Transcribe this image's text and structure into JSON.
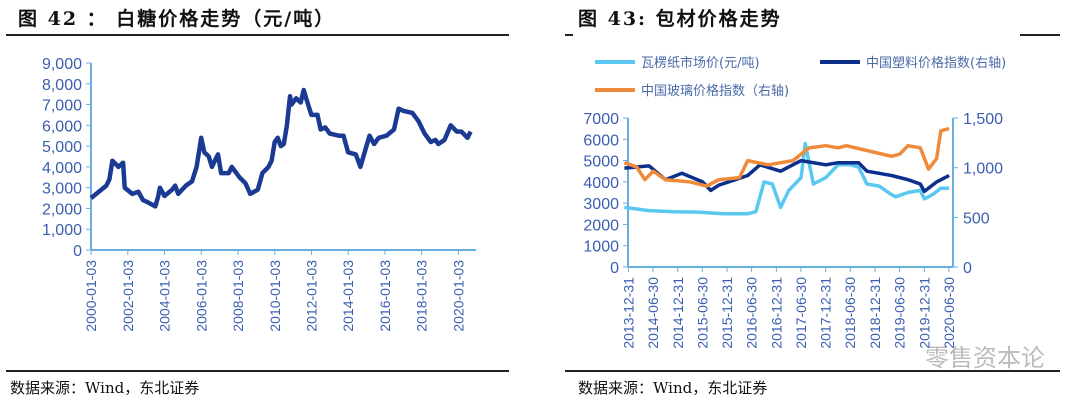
{
  "chart_data": [
    {
      "type": "line",
      "title": "图 42 ： 白糖价格走势（元/吨）",
      "source": "数据来源：Wind，东北证券",
      "ylim": [
        0,
        9000
      ],
      "yticks": [
        "0",
        "1,000",
        "2,000",
        "3,000",
        "4,000",
        "5,000",
        "6,000",
        "7,000",
        "8,000",
        "9,000"
      ],
      "xticks": [
        "2000-01-03",
        "2002-01-03",
        "2004-01-03",
        "2006-01-03",
        "2008-01-03",
        "2010-01-03",
        "2012-01-03",
        "2014-01-03",
        "2016-01-03",
        "2018-01-03",
        "2020-01-03"
      ],
      "grid": false,
      "color": "#1a3a93",
      "series": [
        {
          "x": [
            "2000-01",
            "2000-11",
            "2001-01",
            "2001-03",
            "2001-07",
            "2001-10",
            "2001-11",
            "2002-04",
            "2002-08",
            "2002-11",
            "2003-02",
            "2003-07",
            "2003-09",
            "2003-10",
            "2004-01",
            "2004-06",
            "2004-08",
            "2004-10",
            "2005-03",
            "2005-07",
            "2005-10",
            "2006-01",
            "2006-03",
            "2006-06",
            "2006-08",
            "2006-12",
            "2007-02",
            "2007-07",
            "2007-09",
            "2008-02",
            "2008-06",
            "2008-09",
            "2009-02",
            "2009-05",
            "2009-09",
            "2009-11",
            "2010-01",
            "2010-03",
            "2010-05",
            "2010-07",
            "2010-09",
            "2010-11",
            "2010-12",
            "2011-03",
            "2011-06",
            "2011-08",
            "2011-10",
            "2012-01",
            "2012-05",
            "2012-07",
            "2012-10",
            "2013-01",
            "2013-07",
            "2013-10",
            "2014-01",
            "2014-06",
            "2014-09",
            "2014-11",
            "2015-03",
            "2015-06",
            "2015-09",
            "2016-02",
            "2016-07",
            "2016-10",
            "2017-01",
            "2017-07",
            "2017-11",
            "2018-03",
            "2018-07",
            "2018-10",
            "2018-12",
            "2019-04",
            "2019-08",
            "2019-12",
            "2020-03",
            "2020-07",
            "2020-09"
          ],
          "y": [
            2500,
            3100,
            3400,
            4300,
            4000,
            4200,
            3000,
            2700,
            2800,
            2400,
            2300,
            2100,
            2600,
            3000,
            2600,
            2900,
            3100,
            2700,
            3100,
            3300,
            4000,
            5400,
            4700,
            4500,
            4000,
            4600,
            3700,
            3700,
            4000,
            3500,
            3200,
            2700,
            2900,
            3700,
            4000,
            4300,
            5200,
            5400,
            5000,
            5100,
            6000,
            7400,
            7000,
            7300,
            7100,
            7700,
            7200,
            6500,
            6500,
            5800,
            5900,
            5600,
            5500,
            5500,
            4700,
            4600,
            4000,
            4500,
            5500,
            5100,
            5400,
            5500,
            5800,
            6800,
            6700,
            6600,
            6200,
            5600,
            5200,
            5300,
            5100,
            5300,
            6000,
            5700,
            5700,
            5400,
            5700
          ]
        }
      ]
    },
    {
      "type": "line",
      "title": "图 43: 包材价格走势",
      "source": "数据来源：Wind，东北证券",
      "ylim": [
        0,
        7000
      ],
      "y2lim": [
        0,
        1500
      ],
      "yticks": [
        "0",
        "1000",
        "2000",
        "3000",
        "4000",
        "5000",
        "6000",
        "7000"
      ],
      "y2ticks": [
        "0",
        "500",
        "1,000",
        "1,500"
      ],
      "xticks": [
        "2013-12-31",
        "2014-06-30",
        "2014-12-31",
        "2015-06-30",
        "2015-12-31",
        "2016-06-30",
        "2016-12-31",
        "2017-06-30",
        "2017-12-31",
        "2018-06-30",
        "2018-12-31",
        "2019-06-30",
        "2019-12-31",
        "2020-06-30"
      ],
      "grid": false,
      "legend": "top",
      "series": [
        {
          "name": "瓦楞纸市场价(元/吨)",
          "axis": "left",
          "color": "#5ac8f0",
          "x": [
            "2013-12",
            "2014-06",
            "2014-12",
            "2015-06",
            "2015-12",
            "2016-06",
            "2016-08",
            "2016-10",
            "2016-12",
            "2017-02",
            "2017-04",
            "2017-07",
            "2017-08",
            "2017-10",
            "2018-01",
            "2018-04",
            "2018-07",
            "2018-09",
            "2018-11",
            "2019-02",
            "2019-05",
            "2019-06",
            "2019-09",
            "2019-12",
            "2020-01",
            "2020-03",
            "2020-05",
            "2020-07"
          ],
          "y": [
            2800,
            2650,
            2600,
            2580,
            2500,
            2500,
            2600,
            4000,
            3900,
            2800,
            3600,
            4200,
            5800,
            3900,
            4200,
            4800,
            4800,
            4700,
            3900,
            3800,
            3400,
            3300,
            3500,
            3600,
            3200,
            3400,
            3700,
            3700
          ]
        },
        {
          "name": "中国塑料价格指数(右轴)",
          "axis": "right",
          "color": "#0d2f8c",
          "x": [
            "2013-12",
            "2014-06",
            "2014-10",
            "2015-02",
            "2015-07",
            "2015-09",
            "2015-11",
            "2016-03",
            "2016-06",
            "2016-09",
            "2017-02",
            "2017-07",
            "2018-01",
            "2018-04",
            "2018-09",
            "2018-11",
            "2019-05",
            "2019-09",
            "2019-12",
            "2020-01",
            "2020-04",
            "2020-07"
          ],
          "y": [
            996,
            1018,
            879,
            943,
            857,
            771,
            825,
            879,
            921,
            1029,
            964,
            1071,
            1029,
            1050,
            1050,
            964,
            921,
            879,
            836,
            761,
            857,
            921
          ]
        },
        {
          "name": "中国玻璃价格指数（右轴)",
          "axis": "right",
          "color": "#ef8a3a",
          "x": [
            "2013-12",
            "2014-03",
            "2014-05",
            "2014-07",
            "2014-10",
            "2015-04",
            "2015-08",
            "2015-11",
            "2016-04",
            "2016-06",
            "2016-11",
            "2017-05",
            "2017-09",
            "2018-01",
            "2018-04",
            "2018-06",
            "2019-05",
            "2019-07",
            "2019-09",
            "2019-12",
            "2020-02",
            "2020-04",
            "2020-05",
            "2020-07"
          ],
          "y": [
            1050,
            1007,
            879,
            964,
            879,
            857,
            814,
            879,
            900,
            1071,
            1029,
            1071,
            1200,
            1221,
            1200,
            1221,
            1114,
            1136,
            1221,
            1200,
            986,
            1093,
            1371,
            1393
          ]
        }
      ]
    }
  ],
  "watermark": "零售资本论"
}
